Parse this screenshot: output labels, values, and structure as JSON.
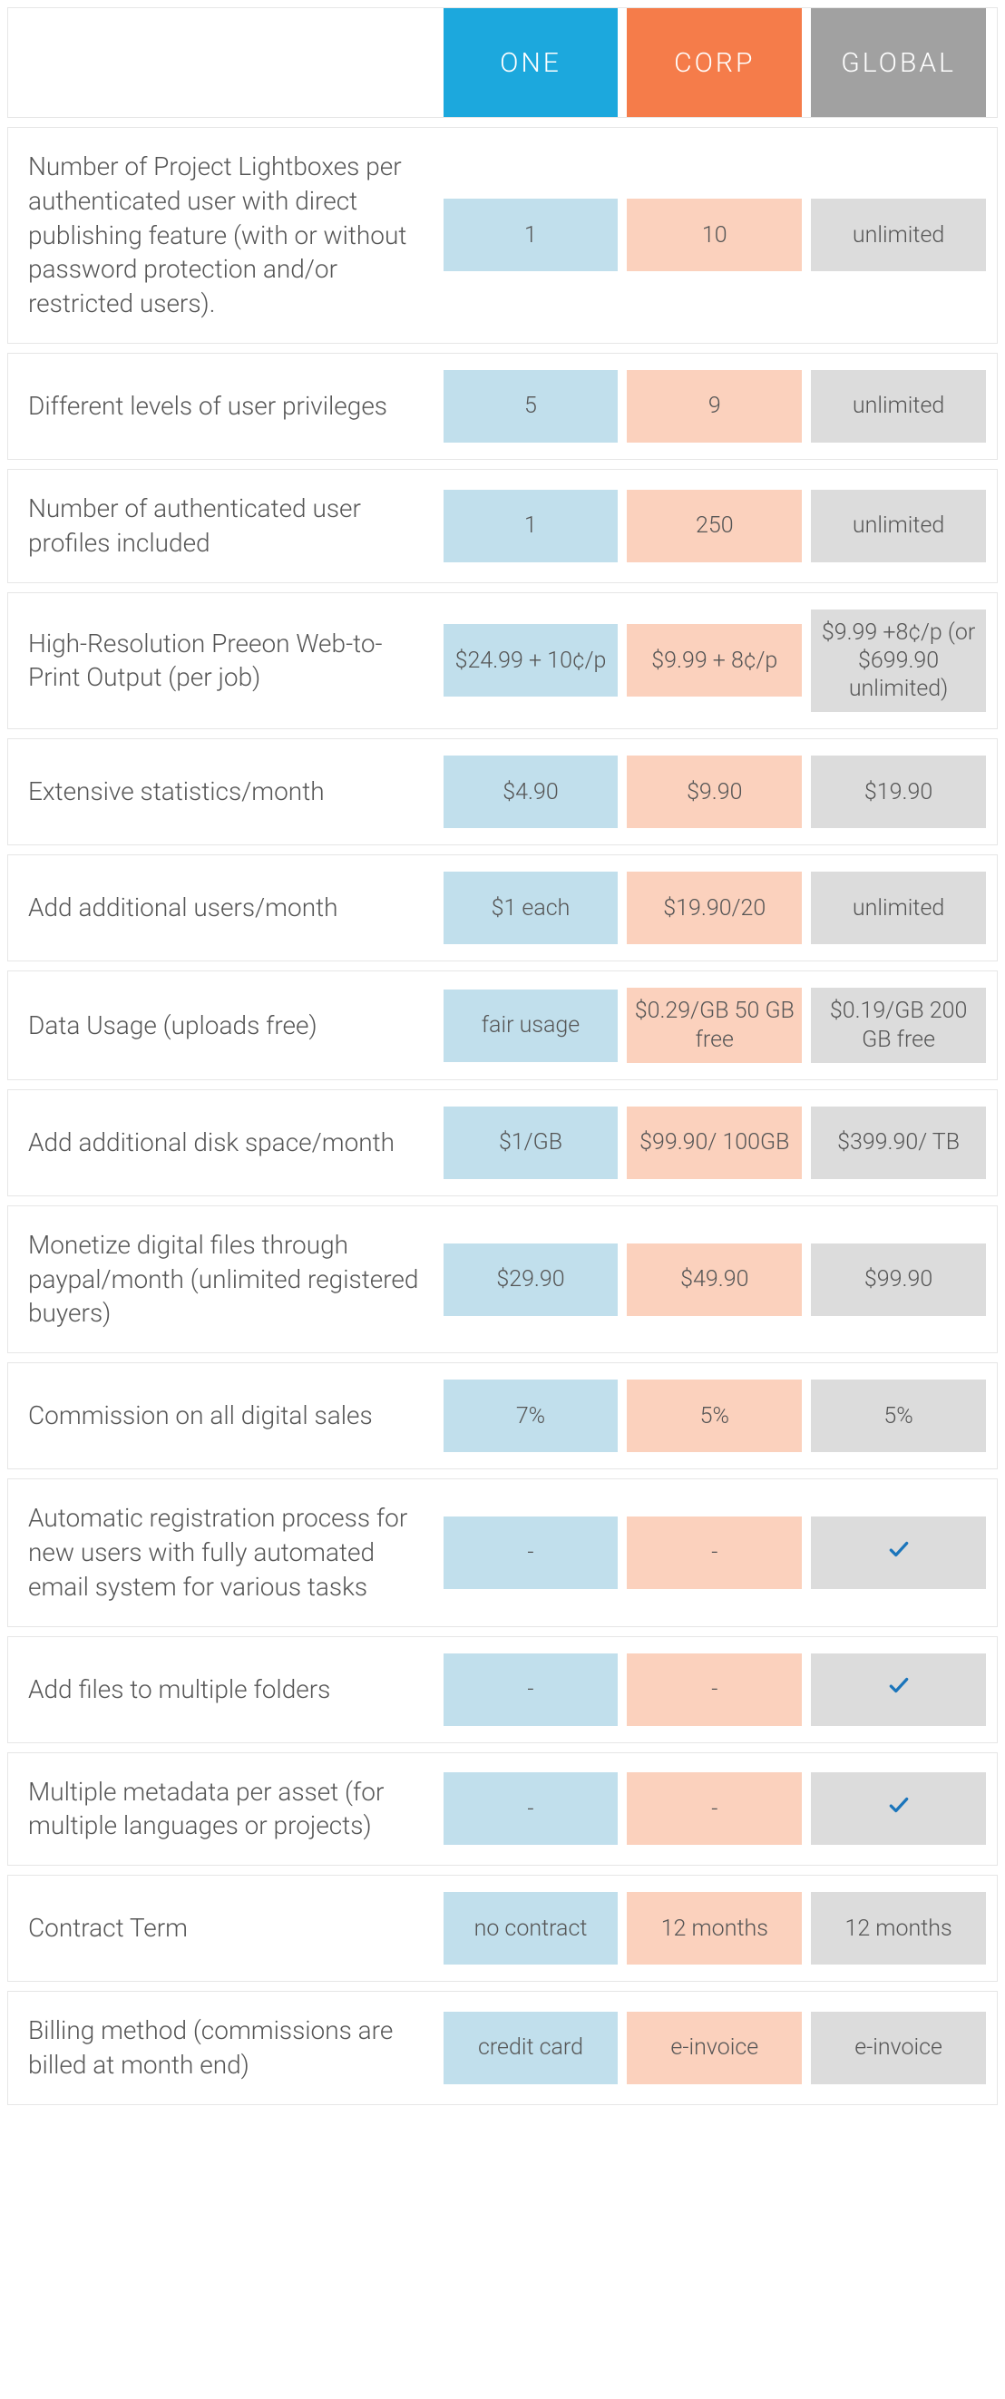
{
  "colors": {
    "one_header_bg": "#1ca8dd",
    "corp_header_bg": "#f57c4a",
    "global_header_bg": "#a1a1a1",
    "one_cell_bg": "#c1dfec",
    "corp_cell_bg": "#fbd1bd",
    "global_cell_bg": "#dcdcdc",
    "check_color": "#1b75bb",
    "text": "#555555",
    "border": "#e6e6e6"
  },
  "plans": [
    {
      "id": "one",
      "label": "ONE"
    },
    {
      "id": "corp",
      "label": "CORP"
    },
    {
      "id": "global",
      "label": "GLOBAL"
    }
  ],
  "rows": [
    {
      "feature": "Number of Project Lightboxes per authenticated user with direct publishing feature (with or without password protection and/or restricted users).",
      "values": [
        "1",
        "10",
        "unlimited"
      ]
    },
    {
      "feature": "Different levels of user privileges",
      "values": [
        "5",
        "9",
        "unlimited"
      ]
    },
    {
      "feature": "Number of authenticated user profiles included",
      "values": [
        "1",
        "250",
        "unlimited"
      ]
    },
    {
      "feature": "High-Resolution Preeon Web-to-Print Output (per job)",
      "values": [
        "$24.99 + 10¢/p",
        "$9.99 + 8¢/p",
        "$9.99 +8¢/p (or $699.90 unlimited)"
      ]
    },
    {
      "feature": "Extensive statistics/month",
      "values": [
        "$4.90",
        "$9.90",
        "$19.90"
      ]
    },
    {
      "feature": "Add additional users/month",
      "values": [
        "$1 each",
        "$19.90/20",
        "unlimited"
      ]
    },
    {
      "feature": "Data Usage (uploads free)",
      "values": [
        "fair usage",
        "$0.29/GB 50 GB free",
        "$0.19/GB 200 GB free"
      ]
    },
    {
      "feature": "Add additional disk space/month",
      "values": [
        "$1/GB",
        "$99.90/ 100GB",
        "$399.90/ TB"
      ]
    },
    {
      "feature": "Monetize digital files through paypal/month (unlimited registered buyers)",
      "values": [
        "$29.90",
        "$49.90",
        "$99.90"
      ]
    },
    {
      "feature": "Commission on all digital sales",
      "values": [
        "7%",
        "5%",
        "5%"
      ]
    },
    {
      "feature": "Automatic registration process for new users with fully automated email system for various tasks",
      "values": [
        "-",
        "-",
        "__CHECK__"
      ]
    },
    {
      "feature": "Add files to multiple folders",
      "values": [
        "-",
        "-",
        "__CHECK__"
      ]
    },
    {
      "feature": "Multiple metadata per asset (for multiple languages or projects)",
      "values": [
        "-",
        "-",
        "__CHECK__"
      ]
    },
    {
      "feature": "Contract Term",
      "values": [
        "no contract",
        "12 months",
        "12 months"
      ]
    },
    {
      "feature": "Billing method (commissions are billed at month end)",
      "values": [
        "credit card",
        "e-invoice",
        "e-invoice"
      ]
    }
  ]
}
